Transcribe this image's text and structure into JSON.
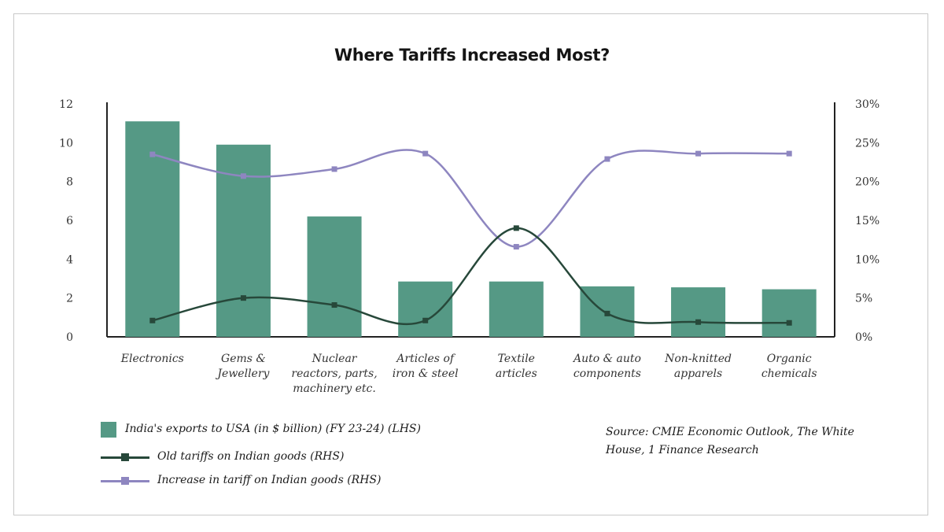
{
  "chart_data": {
    "type": "bar",
    "title": "Where Tariffs Increased Most?",
    "categories": [
      [
        "Electronics"
      ],
      [
        "Gems &",
        "Jewellery"
      ],
      [
        "Nuclear",
        "reactors, parts,",
        "machinery etc."
      ],
      [
        "Articles of",
        "iron & steel"
      ],
      [
        "Textile",
        "articles"
      ],
      [
        "Auto & auto",
        "components"
      ],
      [
        "Non-knitted",
        "apparels"
      ],
      [
        "Organic",
        "chemicals"
      ]
    ],
    "left_axis": {
      "ylim": [
        0,
        12
      ],
      "ticks": [
        0,
        2,
        4,
        6,
        8,
        10,
        12
      ]
    },
    "right_axis": {
      "ylim": [
        0,
        30
      ],
      "ticks": [
        "0%",
        "5%",
        "10%",
        "15%",
        "20%",
        "25%",
        "30%"
      ]
    },
    "series": [
      {
        "name": "India's exports to USA (in $ billion) (FY 23-24) (LHS)",
        "type": "bar",
        "axis": "left",
        "color": "#559985",
        "values": [
          11.1,
          9.9,
          6.2,
          2.85,
          2.85,
          2.6,
          2.55,
          2.45
        ]
      },
      {
        "name": "Old tariffs on Indian goods (RHS)",
        "type": "line",
        "axis": "right",
        "color": "#27483a",
        "values": [
          2.1,
          5.0,
          4.1,
          2.1,
          14.0,
          3.0,
          1.9,
          1.8
        ]
      },
      {
        "name": "Increase in tariff on Indian goods (RHS)",
        "type": "line",
        "axis": "right",
        "color": "#8e86c0",
        "values": [
          23.5,
          20.7,
          21.6,
          23.6,
          11.6,
          22.9,
          23.6,
          23.6
        ]
      }
    ],
    "grid": false,
    "legend_position": "bottom-left"
  },
  "source": "Source: CMIE Economic Outlook, The White House, 1 Finance Research"
}
